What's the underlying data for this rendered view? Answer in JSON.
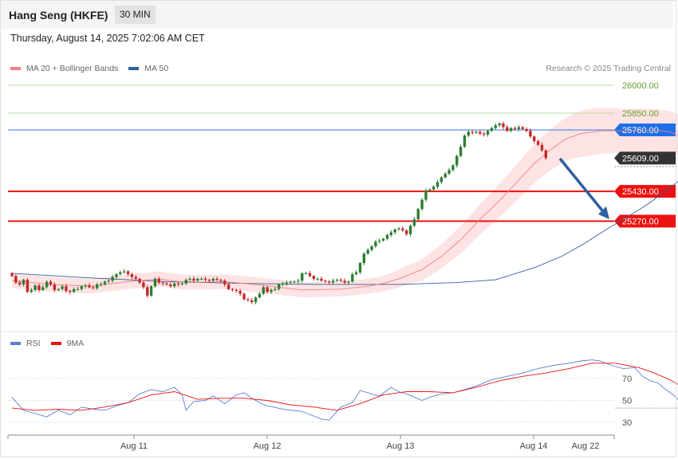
{
  "header": {
    "title": "Hang Seng (HKFE)",
    "timeframe": "30 MIN"
  },
  "datetime": "Thursday, August 14, 2025 7:02:06 AM CET",
  "legend_main": [
    {
      "label": "MA 20 + Bollinger Bands",
      "color": "#f08080"
    },
    {
      "label": "MA 50",
      "color": "#2f5f9f"
    }
  ],
  "legend_rsi": [
    {
      "label": "RSI",
      "color": "#5b7fd4"
    },
    {
      "label": "9MA",
      "color": "#ee1111"
    }
  ],
  "credit": "Research © 2025 Trading Central",
  "colors": {
    "up": "#2e7d32",
    "down": "#c62828",
    "target_arrow": "#2f5f9f",
    "resistance": "#1e6fe8",
    "support": "#ee1111",
    "green_level": "#9ccf7c"
  },
  "chart_data": [
    {
      "type": "candlestick",
      "ylim": [
        25040,
        26040
      ],
      "x_tick_labels": [
        "Aug 11",
        "Aug 12",
        "Aug 13",
        "Aug 14",
        "Aug 22"
      ],
      "levels": [
        {
          "label": "26000.00",
          "value": 26000,
          "kind": "target",
          "color": "#7aa838"
        },
        {
          "label": "25850.00",
          "value": 25850,
          "kind": "target",
          "color": "#7aa838"
        },
        {
          "label": "25760.00",
          "value": 25760,
          "kind": "resistance",
          "color": "#1e6fe8"
        },
        {
          "label": "25609.00",
          "value": 25609,
          "kind": "last",
          "color": "#333333"
        },
        {
          "label": "25430.00",
          "value": 25430,
          "kind": "support",
          "color": "#ee1111"
        },
        {
          "label": "25270.00",
          "value": 25270,
          "kind": "support",
          "color": "#ee1111"
        }
      ],
      "close": [
        24975,
        24940,
        24930,
        24955,
        24890,
        24900,
        24925,
        24900,
        24915,
        24945,
        24930,
        24900,
        24905,
        24920,
        24895,
        24890,
        24905,
        24905,
        24920,
        24925,
        24915,
        24910,
        24930,
        24930,
        24945,
        24950,
        24970,
        24985,
        24995,
        25000,
        24985,
        24970,
        24960,
        24940,
        24915,
        24870,
        24920,
        24960,
        24940,
        24935,
        24930,
        24920,
        24935,
        24930,
        24935,
        24955,
        24960,
        24950,
        24960,
        24960,
        24955,
        24950,
        24960,
        24955,
        24950,
        24930,
        24905,
        24900,
        24895,
        24880,
        24850,
        24845,
        24835,
        24860,
        24880,
        24915,
        24890,
        24900,
        24905,
        24930,
        24935,
        24940,
        24945,
        24945,
        24950,
        24990,
        24990,
        24975,
        24960,
        24960,
        24950,
        24945,
        24940,
        24950,
        24955,
        24950,
        24940,
        24945,
        24985,
        24995,
        25045,
        25095,
        25115,
        25135,
        25160,
        25165,
        25175,
        25195,
        25210,
        25225,
        25230,
        25220,
        25200,
        25245,
        25280,
        25335,
        25385,
        25435,
        25440,
        25455,
        25480,
        25505,
        25525,
        25545,
        25570,
        25620,
        25670,
        25730,
        25750,
        25745,
        25750,
        25740,
        25735,
        25755,
        25770,
        25785,
        25795,
        25775,
        25755,
        25770,
        25765,
        25775,
        25765,
        25755,
        25725,
        25700,
        25680,
        25650,
        25609
      ],
      "ma50_points": [
        [
          0,
          24990
        ],
        [
          20,
          24965
        ],
        [
          40,
          24945
        ],
        [
          60,
          24935
        ],
        [
          80,
          24930
        ],
        [
          100,
          24930
        ],
        [
          115,
          24940
        ],
        [
          125,
          24955
        ],
        [
          135,
          25020
        ],
        [
          142,
          25080
        ],
        [
          148,
          25150
        ],
        [
          154,
          25230
        ],
        [
          158,
          25280
        ],
        [
          162,
          25330
        ],
        [
          165,
          25370
        ],
        [
          168,
          25420
        ],
        [
          170,
          25450
        ],
        [
          172,
          25480
        ],
        [
          175,
          25520
        ],
        [
          177,
          25550
        ],
        [
          179,
          25580
        ],
        [
          181,
          25600
        ]
      ],
      "ma20_points": [
        [
          0,
          24950
        ],
        [
          10,
          24930
        ],
        [
          20,
          24920
        ],
        [
          30,
          24945
        ],
        [
          38,
          24960
        ],
        [
          45,
          24940
        ],
        [
          55,
          24945
        ],
        [
          65,
          24925
        ],
        [
          75,
          24900
        ],
        [
          85,
          24905
        ],
        [
          92,
          24920
        ],
        [
          96,
          24935
        ],
        [
          100,
          24960
        ],
        [
          106,
          25010
        ],
        [
          111,
          25080
        ],
        [
          116,
          25170
        ],
        [
          121,
          25280
        ],
        [
          126,
          25380
        ],
        [
          131,
          25490
        ],
        [
          135,
          25580
        ],
        [
          139,
          25650
        ],
        [
          143,
          25710
        ],
        [
          147,
          25740
        ],
        [
          152,
          25755
        ],
        [
          158,
          25755
        ],
        [
          166,
          25760
        ],
        [
          170,
          25750
        ],
        [
          174,
          25720
        ],
        [
          176,
          25705
        ]
      ]
    },
    {
      "type": "line",
      "name": "RSI",
      "ylim": [
        20,
        90
      ],
      "y_tick_labels": [
        "70",
        "50",
        "30"
      ],
      "rsi_points": [
        [
          0,
          53
        ],
        [
          3,
          41
        ],
        [
          6,
          38
        ],
        [
          9,
          35
        ],
        [
          12,
          41
        ],
        [
          15,
          37
        ],
        [
          18,
          44
        ],
        [
          21,
          42
        ],
        [
          24,
          41
        ],
        [
          27,
          45
        ],
        [
          30,
          48
        ],
        [
          33,
          56
        ],
        [
          36,
          60
        ],
        [
          39,
          58
        ],
        [
          42,
          62
        ],
        [
          44,
          55
        ],
        [
          45,
          41
        ],
        [
          47,
          49
        ],
        [
          50,
          50
        ],
        [
          52,
          54
        ],
        [
          55,
          47
        ],
        [
          58,
          55
        ],
        [
          60,
          57
        ],
        [
          62,
          52
        ],
        [
          65,
          46
        ],
        [
          70,
          42
        ],
        [
          75,
          40
        ],
        [
          80,
          33
        ],
        [
          82,
          32
        ],
        [
          85,
          44
        ],
        [
          88,
          48
        ],
        [
          90,
          59
        ],
        [
          93,
          56
        ],
        [
          95,
          54
        ],
        [
          98,
          62
        ],
        [
          100,
          58
        ],
        [
          102,
          56
        ],
        [
          104,
          53
        ],
        [
          106,
          50
        ],
        [
          108,
          53
        ],
        [
          111,
          56
        ],
        [
          114,
          57
        ],
        [
          117,
          60
        ],
        [
          120,
          63
        ],
        [
          124,
          69
        ],
        [
          128,
          72
        ],
        [
          132,
          75
        ],
        [
          136,
          79
        ],
        [
          140,
          82
        ],
        [
          144,
          84
        ],
        [
          147,
          86
        ],
        [
          150,
          87
        ],
        [
          152,
          86
        ],
        [
          155,
          82
        ],
        [
          158,
          79
        ],
        [
          161,
          80
        ],
        [
          163,
          72
        ],
        [
          165,
          68
        ],
        [
          167,
          66
        ],
        [
          169,
          60
        ],
        [
          171,
          55
        ],
        [
          173,
          48
        ],
        [
          175,
          42
        ],
        [
          177,
          43
        ]
      ],
      "ma9_points": [
        [
          0,
          43
        ],
        [
          6,
          41
        ],
        [
          12,
          42
        ],
        [
          18,
          41
        ],
        [
          24,
          44
        ],
        [
          30,
          48
        ],
        [
          36,
          55
        ],
        [
          42,
          58
        ],
        [
          48,
          51
        ],
        [
          54,
          52
        ],
        [
          60,
          52
        ],
        [
          66,
          50
        ],
        [
          72,
          46
        ],
        [
          78,
          44
        ],
        [
          84,
          41
        ],
        [
          90,
          47
        ],
        [
          96,
          55
        ],
        [
          102,
          58
        ],
        [
          108,
          58
        ],
        [
          114,
          57
        ],
        [
          120,
          62
        ],
        [
          126,
          68
        ],
        [
          132,
          72
        ],
        [
          138,
          75
        ],
        [
          144,
          79
        ],
        [
          150,
          84
        ],
        [
          156,
          84
        ],
        [
          162,
          80
        ],
        [
          166,
          75
        ],
        [
          170,
          69
        ],
        [
          174,
          61
        ],
        [
          177,
          55
        ]
      ]
    }
  ]
}
